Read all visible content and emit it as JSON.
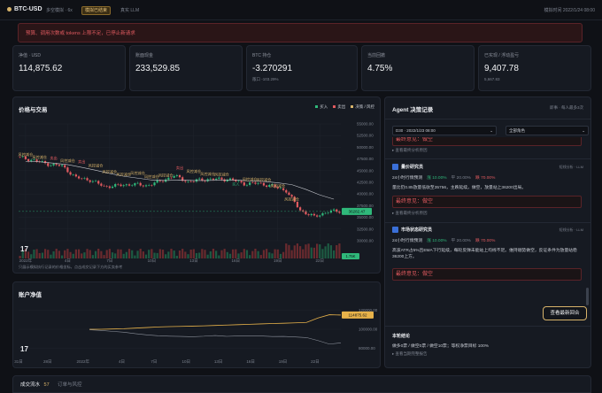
{
  "header": {
    "brand": "BTC-USD",
    "mode": "多空模拟 · 6x",
    "status_pill": "模拟已结束",
    "model": "真实 LLM",
    "sim_time": "模拟时间 2022/1/24 08:00"
  },
  "alert": {
    "text": "预算、调用次数或 tokens 上限不足，已停止新请求"
  },
  "stats": [
    {
      "label": "净值 · USD",
      "value": "114,875.62",
      "sub": ""
    },
    {
      "label": "账面现金",
      "value": "233,529.85",
      "sub": ""
    },
    {
      "label": "BTC 持仓",
      "value": "-3.270291",
      "sub": "敞口 -103.29%"
    },
    {
      "label": "当前回撤",
      "value": "4.75%",
      "sub": ""
    },
    {
      "label": "已实现 / 浮动盈亏",
      "value": "9,407.78",
      "sub": "5,667.83"
    }
  ],
  "price_panel": {
    "title": "价格与交易",
    "legend": [
      "买入",
      "卖出",
      "决策 / 风控"
    ],
    "footer": "只展示模拟执行记录的价格坐标，点击成交记录下方的买卖参考",
    "y_ticks": [
      "55000.00",
      "52500.00",
      "50000.00",
      "47500.00",
      "45000.00",
      "42500.00",
      "40000.00",
      "37500.00",
      "35000.00",
      "32500.00",
      "30000.00"
    ],
    "x_ticks": [
      "2022年",
      "4日",
      "7日",
      "10日",
      "13日",
      "16日",
      "19日",
      "22日"
    ],
    "current_price": "36282.47",
    "current_volume": "1.75K",
    "markers": [
      "风控减仓",
      "风控减仓",
      "卖出",
      "风控减仓",
      "卖出",
      "风控减仓",
      "风控减仓",
      "风控减仓",
      "风控减仓",
      "风控减仓",
      "风控减仓",
      "卖出",
      "风控减仓",
      "风控减仓",
      "风控减仓",
      "买入",
      "风控减仓",
      "风控减仓",
      "风控减仓",
      "风控减仓"
    ]
  },
  "equity_panel": {
    "title": "账户净值",
    "y_ticks": [
      "120000.00",
      "100000.00",
      "80000.00"
    ],
    "x_ticks": [
      "31日",
      "28日",
      "2022年",
      "4日",
      "7日",
      "10日",
      "13日",
      "16日",
      "19日",
      "22日"
    ],
    "current_equity": "114875.62"
  },
  "agent_panel": {
    "title": "Agent 决策记录",
    "meta": "即事 · 每人最多3次",
    "filter_date": "D30 · 2022/1/23 08:00",
    "filter_role": "全部角色",
    "top_final_label": "最终意见：做空",
    "top_link": "查看最终分析原因",
    "cards": [
      {
        "name": "量价研究员",
        "tag": "短线分析 · LLM",
        "horizon": "24小时行情预测",
        "up": "涨 10.00%",
        "flat": "平 20.00%",
        "down": "跌 70.00%",
        "body": "量比仍0.85放量低收至35756，主跌延续，做空，放量站上36200出局。",
        "final": "最终意见：做空",
        "link": "查看最终分析原因"
      },
      {
        "name": "市场状态研究员",
        "tag": "短线分析 · LLM",
        "horizon": "24小时行情预测",
        "up": "涨 10.00%",
        "flat": "平 20.00%",
        "down": "跌 70.00%",
        "body": "高波ATR占5%且EMA下行延续，每轮反弹未能站上均线不足。维持顺势做空，反证条件为放量站稳36200上方。",
        "final": "最终意见：做空"
      }
    ],
    "latest_button": "查看最新回合",
    "summary_title": "本轮结论",
    "summary_text": "做多0票 / 做空0票 / 做空10票；等权净票目标 100%",
    "summary_link": "查看当期完整报告"
  },
  "bottom_tabs": {
    "tab1": "成交流水",
    "tab1_count": "57",
    "tab2": "订单与风控"
  },
  "colors": {
    "accent": "#d7b36a",
    "up": "#2fb87a",
    "down": "#e05a5f",
    "equity": "#e7b24a"
  },
  "chart_data": [
    {
      "type": "candlestick",
      "title": "价格与交易",
      "x": [
        "2022-01-01",
        "2022-01-02",
        "2022-01-03",
        "2022-01-04",
        "2022-01-05",
        "2022-01-06",
        "2022-01-07",
        "2022-01-08",
        "2022-01-09",
        "2022-01-10",
        "2022-01-11",
        "2022-01-12",
        "2022-01-13",
        "2022-01-14",
        "2022-01-15",
        "2022-01-16",
        "2022-01-17",
        "2022-01-18",
        "2022-01-19",
        "2022-01-20",
        "2022-01-21",
        "2022-01-22",
        "2022-01-23"
      ],
      "close": [
        47800,
        47200,
        46400,
        46000,
        43500,
        43000,
        41600,
        41800,
        42100,
        41800,
        42700,
        43900,
        42600,
        43100,
        43200,
        43100,
        42200,
        42300,
        41700,
        40700,
        36500,
        35100,
        36282
      ],
      "ylim": [
        30000,
        55000
      ],
      "ema": [
        47000,
        46900,
        46600,
        46300,
        45700,
        45100,
        44400,
        43800,
        43400,
        43000,
        42900,
        43000,
        42900,
        42900,
        43000,
        43000,
        42800,
        42700,
        42400,
        42000,
        41000,
        39800,
        38900
      ]
    },
    {
      "type": "line",
      "title": "账户净值",
      "series": [
        {
          "values": [
            100000,
            100000,
            100300,
            100600,
            101200,
            101800,
            102400,
            102800,
            103000,
            103300,
            103600,
            104000,
            104400,
            104800,
            105200,
            105600,
            106000,
            106300,
            106700,
            107200,
            111800,
            115200,
            114876
          ]
        },
        {
          "values": [
            99500,
            98800,
            97800,
            96900,
            95400,
            94200,
            93200,
            92800,
            92500,
            92200,
            92700,
            93500,
            92600,
            93000,
            93100,
            93000,
            92400,
            92500,
            92000,
            91300,
            88200,
            84500,
            85800
          ]
        }
      ],
      "ylim": [
        75000,
        125000
      ]
    }
  ]
}
